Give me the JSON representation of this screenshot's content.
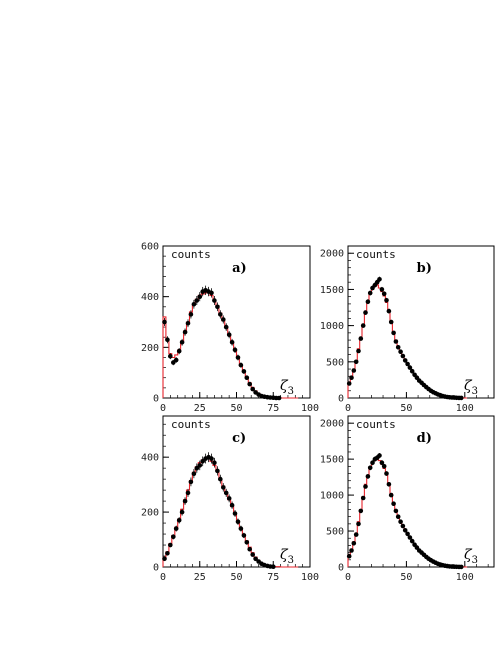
{
  "figure": {
    "zeta_symbol": "ζ",
    "zeta_subscript": "3"
  },
  "chart_data": [
    {
      "panel": "a)",
      "type": "scatter",
      "ylabel": "counts",
      "xlim": [
        0,
        100
      ],
      "ylim": [
        0,
        600
      ],
      "xticks": [
        0,
        25,
        50,
        75,
        100
      ],
      "yticks": [
        0,
        200,
        400,
        600
      ],
      "xlabel": "ζ3",
      "series": [
        {
          "marker": "point",
          "color": "#000000",
          "x": [
            0,
            2,
            4,
            6,
            8,
            10,
            12,
            14,
            16,
            18,
            20,
            22,
            24,
            26,
            28,
            30,
            32,
            34,
            36,
            38,
            40,
            42,
            44,
            46,
            48,
            50,
            52,
            54,
            56,
            58,
            60,
            62,
            64,
            66,
            68,
            70,
            72,
            74,
            76,
            78
          ],
          "y": [
            300,
            230,
            165,
            140,
            150,
            185,
            220,
            260,
            295,
            330,
            370,
            385,
            400,
            420,
            425,
            420,
            415,
            385,
            360,
            330,
            310,
            280,
            250,
            220,
            190,
            160,
            130,
            105,
            80,
            55,
            35,
            22,
            14,
            8,
            5,
            3,
            2,
            1,
            0,
            0
          ]
        },
        {
          "type": "step",
          "color": "#e8242c",
          "x": [
            0,
            2,
            4,
            6,
            8,
            10,
            12,
            14,
            16,
            18,
            20,
            22,
            24,
            26,
            28,
            30,
            32,
            34,
            36,
            38,
            40,
            42,
            44,
            46,
            48,
            50,
            52,
            54,
            56,
            58,
            60,
            62,
            64,
            66,
            68,
            70,
            72,
            74,
            76,
            78,
            80,
            85,
            90
          ],
          "y": [
            320,
            230,
            175,
            160,
            170,
            190,
            225,
            265,
            300,
            340,
            370,
            390,
            405,
            410,
            415,
            420,
            405,
            385,
            365,
            335,
            305,
            280,
            250,
            220,
            190,
            160,
            130,
            105,
            82,
            60,
            42,
            28,
            18,
            12,
            7,
            4,
            3,
            2,
            1,
            1,
            0,
            0,
            0
          ]
        }
      ]
    },
    {
      "panel": "b)",
      "type": "scatter",
      "ylabel": "counts",
      "xlim": [
        0,
        125
      ],
      "ylim": [
        0,
        2100
      ],
      "xticks": [
        0,
        50,
        100
      ],
      "yticks": [
        0,
        500,
        1000,
        1500,
        2000
      ],
      "xlabel": "ζ3",
      "series": [
        {
          "marker": "point",
          "color": "#000000",
          "x": [
            0,
            2,
            4,
            6,
            8,
            10,
            12,
            14,
            16,
            18,
            20,
            22,
            24,
            26,
            28,
            30,
            32,
            34,
            36,
            38,
            40,
            42,
            44,
            46,
            48,
            50,
            52,
            54,
            56,
            58,
            60,
            62,
            64,
            66,
            68,
            70,
            72,
            74,
            76,
            78,
            80,
            82,
            84,
            86,
            88,
            90,
            92,
            94,
            96
          ],
          "y": [
            200,
            280,
            380,
            500,
            650,
            820,
            1000,
            1180,
            1330,
            1450,
            1520,
            1560,
            1600,
            1640,
            1500,
            1440,
            1350,
            1200,
            1050,
            900,
            780,
            700,
            640,
            580,
            520,
            470,
            420,
            370,
            320,
            280,
            240,
            210,
            180,
            150,
            125,
            100,
            80,
            65,
            50,
            38,
            28,
            20,
            14,
            10,
            7,
            5,
            3,
            2,
            1
          ]
        },
        {
          "type": "step",
          "color": "#e8242c",
          "x": [
            0,
            2,
            4,
            6,
            8,
            10,
            12,
            14,
            16,
            18,
            20,
            22,
            24,
            26,
            28,
            30,
            32,
            34,
            36,
            38,
            40,
            42,
            44,
            46,
            48,
            50,
            52,
            54,
            56,
            58,
            60,
            62,
            64,
            66,
            68,
            70,
            72,
            74,
            76,
            78,
            80,
            82,
            84,
            86,
            88,
            90,
            92,
            94,
            96,
            98,
            100
          ],
          "y": [
            220,
            300,
            400,
            520,
            680,
            840,
            1020,
            1200,
            1340,
            1440,
            1500,
            1540,
            1560,
            1520,
            1470,
            1410,
            1320,
            1190,
            1060,
            920,
            800,
            710,
            640,
            580,
            520,
            470,
            420,
            375,
            330,
            290,
            250,
            215,
            185,
            155,
            128,
            104,
            84,
            67,
            52,
            40,
            30,
            22,
            16,
            11,
            8,
            5,
            3,
            2,
            1,
            1,
            0
          ]
        }
      ]
    },
    {
      "panel": "c)",
      "type": "scatter",
      "ylabel": "counts",
      "xlim": [
        0,
        100
      ],
      "ylim": [
        0,
        550
      ],
      "xticks": [
        0,
        25,
        50,
        75,
        100
      ],
      "yticks": [
        0,
        200,
        400
      ],
      "xlabel": "ζ3",
      "series": [
        {
          "marker": "point",
          "color": "#000000",
          "x": [
            0,
            2,
            4,
            6,
            8,
            10,
            12,
            14,
            16,
            18,
            20,
            22,
            24,
            26,
            28,
            30,
            32,
            34,
            36,
            38,
            40,
            42,
            44,
            46,
            48,
            50,
            52,
            54,
            56,
            58,
            60,
            62,
            64,
            66,
            68,
            70,
            72,
            74
          ],
          "y": [
            30,
            50,
            80,
            110,
            140,
            170,
            200,
            240,
            270,
            310,
            340,
            360,
            370,
            385,
            395,
            400,
            395,
            380,
            350,
            320,
            290,
            270,
            250,
            225,
            195,
            165,
            140,
            115,
            90,
            65,
            45,
            30,
            20,
            12,
            7,
            4,
            2,
            1
          ]
        },
        {
          "type": "step",
          "color": "#e8242c",
          "x": [
            0,
            2,
            4,
            6,
            8,
            10,
            12,
            14,
            16,
            18,
            20,
            22,
            24,
            26,
            28,
            30,
            32,
            34,
            36,
            38,
            40,
            42,
            44,
            46,
            48,
            50,
            52,
            54,
            56,
            58,
            60,
            62,
            64,
            66,
            68,
            70,
            72,
            74,
            76,
            78,
            80,
            85,
            90
          ],
          "y": [
            35,
            55,
            85,
            115,
            145,
            175,
            210,
            245,
            280,
            315,
            345,
            365,
            380,
            390,
            395,
            395,
            385,
            370,
            350,
            320,
            295,
            270,
            245,
            220,
            195,
            168,
            142,
            118,
            95,
            72,
            52,
            36,
            24,
            15,
            9,
            5,
            3,
            2,
            1,
            1,
            0,
            0,
            0
          ]
        }
      ]
    },
    {
      "panel": "d)",
      "type": "scatter",
      "ylabel": "counts",
      "xlim": [
        0,
        125
      ],
      "ylim": [
        0,
        2100
      ],
      "xticks": [
        0,
        50,
        100
      ],
      "yticks": [
        0,
        500,
        1000,
        1500,
        2000
      ],
      "xlabel": "ζ3",
      "series": [
        {
          "marker": "point",
          "color": "#000000",
          "x": [
            0,
            2,
            4,
            6,
            8,
            10,
            12,
            14,
            16,
            18,
            20,
            22,
            24,
            26,
            28,
            30,
            32,
            34,
            36,
            38,
            40,
            42,
            44,
            46,
            48,
            50,
            52,
            54,
            56,
            58,
            60,
            62,
            64,
            66,
            68,
            70,
            72,
            74,
            76,
            78,
            80,
            82,
            84,
            86,
            88,
            90,
            92,
            94,
            96
          ],
          "y": [
            150,
            230,
            330,
            450,
            600,
            780,
            960,
            1120,
            1260,
            1380,
            1450,
            1500,
            1520,
            1550,
            1450,
            1400,
            1300,
            1150,
            1000,
            880,
            780,
            700,
            630,
            570,
            510,
            460,
            410,
            360,
            310,
            270,
            230,
            200,
            170,
            140,
            115,
            95,
            75,
            60,
            45,
            35,
            25,
            18,
            13,
            9,
            6,
            4,
            3,
            2,
            1
          ]
        },
        {
          "type": "step",
          "color": "#e8242c",
          "x": [
            0,
            2,
            4,
            6,
            8,
            10,
            12,
            14,
            16,
            18,
            20,
            22,
            24,
            26,
            28,
            30,
            32,
            34,
            36,
            38,
            40,
            42,
            44,
            46,
            48,
            50,
            52,
            54,
            56,
            58,
            60,
            62,
            64,
            66,
            68,
            70,
            72,
            74,
            76,
            78,
            80,
            82,
            84,
            86,
            88,
            90,
            92,
            94,
            96,
            98,
            100
          ],
          "y": [
            170,
            250,
            350,
            470,
            630,
            800,
            980,
            1150,
            1280,
            1380,
            1440,
            1480,
            1500,
            1480,
            1430,
            1370,
            1280,
            1150,
            1020,
            890,
            780,
            700,
            630,
            570,
            515,
            465,
            415,
            368,
            322,
            282,
            243,
            210,
            180,
            150,
            124,
            101,
            81,
            64,
            50,
            38,
            28,
            20,
            14,
            10,
            7,
            5,
            3,
            2,
            1,
            1,
            0
          ]
        }
      ]
    }
  ]
}
